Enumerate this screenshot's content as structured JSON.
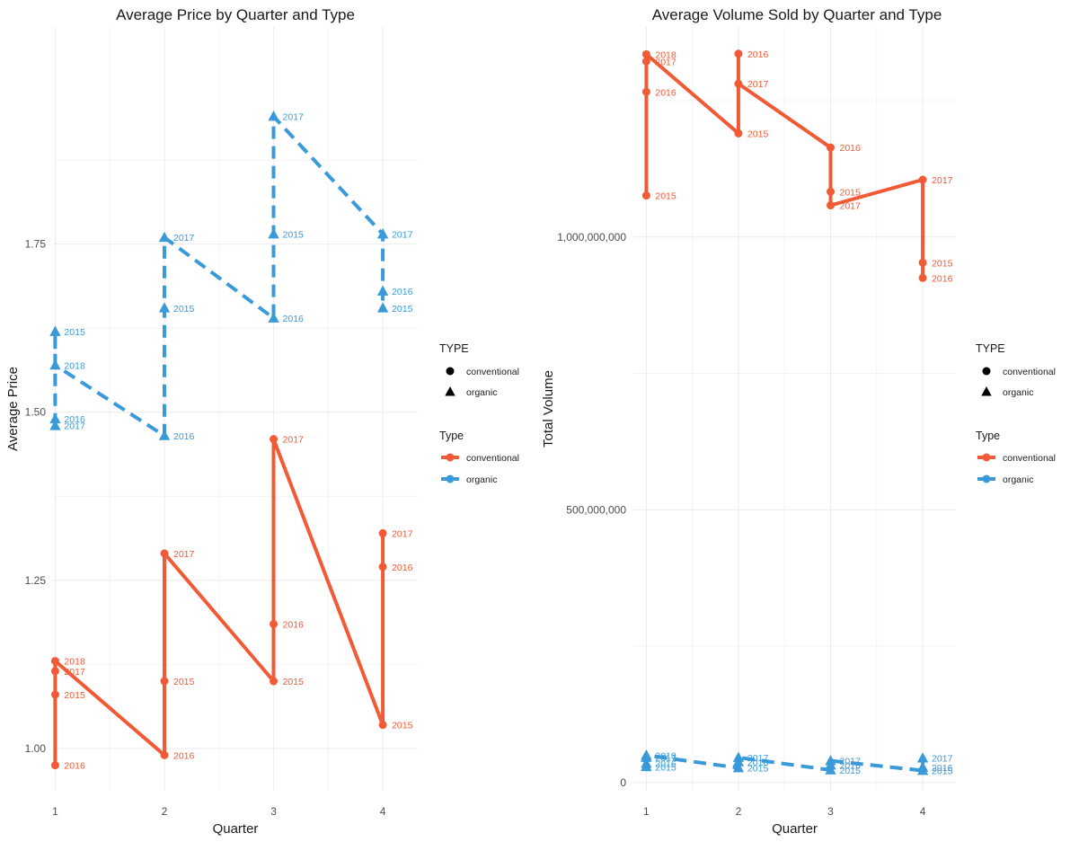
{
  "colors": {
    "conventional": "#F15A35",
    "organic": "#3A9AD9"
  },
  "legends": {
    "shape_title": "TYPE",
    "line_title": "Type",
    "items": [
      "conventional",
      "organic"
    ]
  },
  "chart_data": [
    {
      "type": "line",
      "title": "Average Price by Quarter and Type",
      "xlabel": "Quarter",
      "ylabel": "Average Price",
      "x_ticks": [
        1,
        2,
        3,
        4
      ],
      "y_ticks": [
        1.0,
        1.25,
        1.5,
        1.75
      ],
      "y_tick_labels": [
        "1.00",
        "1.25",
        "1.50",
        "1.75"
      ],
      "xlim": [
        0.98,
        4.32
      ],
      "ylim": [
        0.937,
        2.073
      ],
      "legend": "right",
      "grid": true,
      "series": [
        {
          "name": "conventional",
          "line_style": "solid",
          "marker": "circle",
          "points": [
            {
              "x": 1,
              "y": 0.975,
              "label": "2016"
            },
            {
              "x": 1,
              "y": 1.08,
              "label": "2015"
            },
            {
              "x": 1,
              "y": 1.115,
              "label": "2017"
            },
            {
              "x": 1,
              "y": 1.13,
              "label": "2018"
            },
            {
              "x": 2,
              "y": 0.99,
              "label": "2016"
            },
            {
              "x": 2,
              "y": 1.1,
              "label": "2015"
            },
            {
              "x": 2,
              "y": 1.29,
              "label": "2017"
            },
            {
              "x": 3,
              "y": 1.1,
              "label": "2015"
            },
            {
              "x": 3,
              "y": 1.185,
              "label": "2016"
            },
            {
              "x": 3,
              "y": 1.46,
              "label": "2017"
            },
            {
              "x": 4,
              "y": 1.035,
              "label": "2015"
            },
            {
              "x": 4,
              "y": 1.27,
              "label": "2016"
            },
            {
              "x": 4,
              "y": 1.32,
              "label": "2017"
            }
          ]
        },
        {
          "name": "organic",
          "line_style": "dashed",
          "marker": "triangle",
          "points": [
            {
              "x": 1,
              "y": 1.48,
              "label": "2017"
            },
            {
              "x": 1,
              "y": 1.49,
              "label": "2016"
            },
            {
              "x": 1,
              "y": 1.62,
              "label": "2015"
            },
            {
              "x": 1,
              "y": 1.57,
              "label": "2018"
            },
            {
              "x": 2,
              "y": 1.465,
              "label": "2016"
            },
            {
              "x": 2,
              "y": 1.655,
              "label": "2015"
            },
            {
              "x": 2,
              "y": 1.76,
              "label": "2017"
            },
            {
              "x": 3,
              "y": 1.64,
              "label": "2016"
            },
            {
              "x": 3,
              "y": 1.765,
              "label": "2015"
            },
            {
              "x": 3,
              "y": 1.94,
              "label": "2017"
            },
            {
              "x": 4,
              "y": 1.765,
              "label": "2017"
            },
            {
              "x": 4,
              "y": 1.68,
              "label": "2016"
            },
            {
              "x": 4,
              "y": 1.655,
              "label": "2015"
            }
          ]
        }
      ]
    },
    {
      "type": "line",
      "title": "Average Volume Sold by Quarter and Type",
      "xlabel": "Quarter",
      "ylabel": "Total Volume",
      "x_ticks": [
        1,
        2,
        3,
        4
      ],
      "y_ticks": [
        0,
        500000000,
        1000000000
      ],
      "y_tick_labels": [
        "0",
        "500,000,000",
        "1,000,000,000"
      ],
      "xlim": [
        0.86,
        4.36
      ],
      "ylim": [
        -15000000,
        1385000000
      ],
      "legend": "right",
      "grid": true,
      "series": [
        {
          "name": "conventional",
          "line_style": "solid",
          "marker": "circle",
          "points": [
            {
              "x": 1,
              "y": 1076000000,
              "label": "2015"
            },
            {
              "x": 1,
              "y": 1266000000,
              "label": "2016"
            },
            {
              "x": 1,
              "y": 1322000000,
              "label": "2017"
            },
            {
              "x": 1,
              "y": 1335000000,
              "label": "2018"
            },
            {
              "x": 2,
              "y": 1190000000,
              "label": "2015"
            },
            {
              "x": 2,
              "y": 1336000000,
              "label": "2016"
            },
            {
              "x": 2,
              "y": 1281000000,
              "label": "2017"
            },
            {
              "x": 3,
              "y": 1164000000,
              "label": "2016"
            },
            {
              "x": 3,
              "y": 1083000000,
              "label": "2015"
            },
            {
              "x": 3,
              "y": 1058000000,
              "label": "2017"
            },
            {
              "x": 4,
              "y": 1105000000,
              "label": "2017"
            },
            {
              "x": 4,
              "y": 953000000,
              "label": "2015"
            },
            {
              "x": 4,
              "y": 925000000,
              "label": "2016"
            }
          ]
        },
        {
          "name": "organic",
          "line_style": "dashed",
          "marker": "triangle",
          "points": [
            {
              "x": 1,
              "y": 29000000,
              "label": "2015"
            },
            {
              "x": 1,
              "y": 35000000,
              "label": "2016"
            },
            {
              "x": 1,
              "y": 46000000,
              "label": "2017"
            },
            {
              "x": 1,
              "y": 50000000,
              "label": "2018"
            },
            {
              "x": 2,
              "y": 27000000,
              "label": "2015"
            },
            {
              "x": 2,
              "y": 38000000,
              "label": "2016"
            },
            {
              "x": 2,
              "y": 46000000,
              "label": "2017"
            },
            {
              "x": 3,
              "y": 23000000,
              "label": "2015"
            },
            {
              "x": 3,
              "y": 32000000,
              "label": "2016"
            },
            {
              "x": 3,
              "y": 40000000,
              "label": "2017"
            },
            {
              "x": 4,
              "y": 22000000,
              "label": "2015"
            },
            {
              "x": 4,
              "y": 28000000,
              "label": "2016"
            },
            {
              "x": 4,
              "y": 45000000,
              "label": "2017"
            }
          ]
        }
      ]
    }
  ]
}
